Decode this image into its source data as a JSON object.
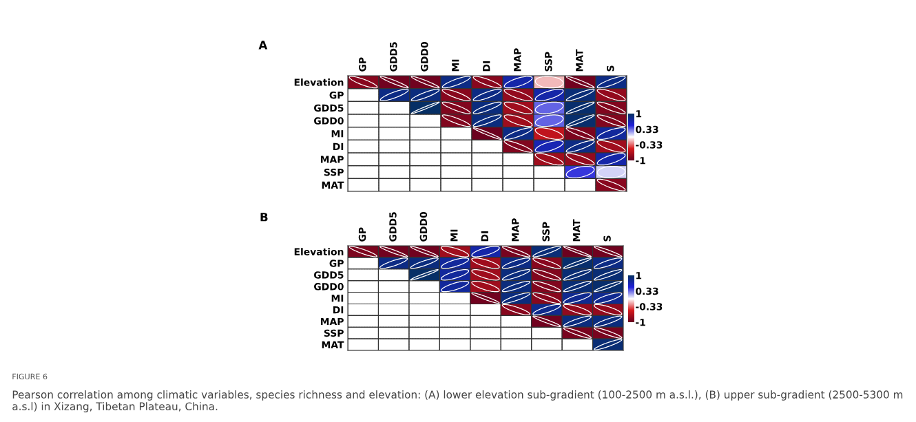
{
  "chart_data": [
    {
      "type": "heatmap",
      "title": "A",
      "categories": [
        "GP",
        "GDD5",
        "GDD0",
        "MI",
        "DI",
        "MAP",
        "SSP",
        "MAT",
        "S"
      ],
      "y_categories": [
        "Elevation",
        "GP",
        "GDD5",
        "GDD0",
        "MI",
        "DI",
        "MAP",
        "SSP",
        "MAT"
      ],
      "cells": [
        [
          -0.85,
          -0.95,
          -0.95,
          0.85,
          -0.85,
          0.7,
          -0.15,
          -0.95,
          0.85
        ],
        [
          null,
          0.85,
          0.88,
          -0.85,
          0.85,
          -0.8,
          0.7,
          0.9,
          -0.8
        ],
        [
          null,
          null,
          0.98,
          -0.88,
          0.88,
          -0.75,
          0.35,
          0.95,
          -0.88
        ],
        [
          null,
          null,
          null,
          -0.88,
          0.88,
          -0.75,
          0.35,
          0.95,
          -0.88
        ],
        [
          null,
          null,
          null,
          null,
          -0.97,
          0.85,
          -0.6,
          -0.9,
          0.75
        ],
        [
          null,
          null,
          null,
          null,
          null,
          -0.88,
          0.65,
          0.85,
          -0.75
        ],
        [
          null,
          null,
          null,
          null,
          null,
          null,
          -0.75,
          -0.8,
          0.7
        ],
        [
          null,
          null,
          null,
          null,
          null,
          null,
          null,
          0.45,
          0.1
        ],
        [
          null,
          null,
          null,
          null,
          null,
          null,
          null,
          null,
          -0.85
        ]
      ],
      "clim": [
        -1,
        1
      ],
      "cticks": [
        1,
        0.33,
        -0.33,
        -1
      ],
      "grid": true
    },
    {
      "type": "heatmap",
      "title": "B",
      "categories": [
        "GP",
        "GDD5",
        "GDD0",
        "MI",
        "DI",
        "MAP",
        "SSP",
        "MAT",
        "S"
      ],
      "y_categories": [
        "Elevation",
        "GP",
        "GDD5",
        "GDD0",
        "MI",
        "DI",
        "MAP",
        "SSP",
        "MAT"
      ],
      "cells": [
        [
          -0.9,
          -0.95,
          -0.95,
          -0.75,
          0.7,
          -0.92,
          0.9,
          -0.97,
          -0.95
        ],
        [
          null,
          0.85,
          0.88,
          0.75,
          -0.75,
          0.85,
          -0.85,
          0.95,
          0.85
        ],
        [
          null,
          null,
          0.97,
          0.75,
          -0.75,
          0.88,
          -0.88,
          0.92,
          0.92
        ],
        [
          null,
          null,
          null,
          0.75,
          -0.75,
          0.88,
          -0.88,
          0.92,
          0.95
        ],
        [
          null,
          null,
          null,
          null,
          -0.95,
          0.88,
          -0.85,
          0.8,
          0.8
        ],
        [
          null,
          null,
          null,
          null,
          null,
          -0.85,
          0.82,
          -0.8,
          -0.8
        ],
        [
          null,
          null,
          null,
          null,
          null,
          null,
          -0.95,
          0.88,
          0.88
        ],
        [
          null,
          null,
          null,
          null,
          null,
          null,
          null,
          -0.92,
          -0.92
        ],
        [
          null,
          null,
          null,
          null,
          null,
          null,
          null,
          null,
          0.92
        ]
      ],
      "clim": [
        -1,
        1
      ],
      "cticks": [
        1,
        0.33,
        -0.33,
        -1
      ],
      "grid": true,
      "annotations": [
        "FIGURE 6",
        "Pearson correlation among climatic variables, species richness and elevation: (A) lower elevation sub-gradient (100-2500 m a.s.l.), (B) upper sub-gradient (2500-5300 m a.s.l) in Xizang, Tibetan Plateau, China."
      ]
    }
  ]
}
